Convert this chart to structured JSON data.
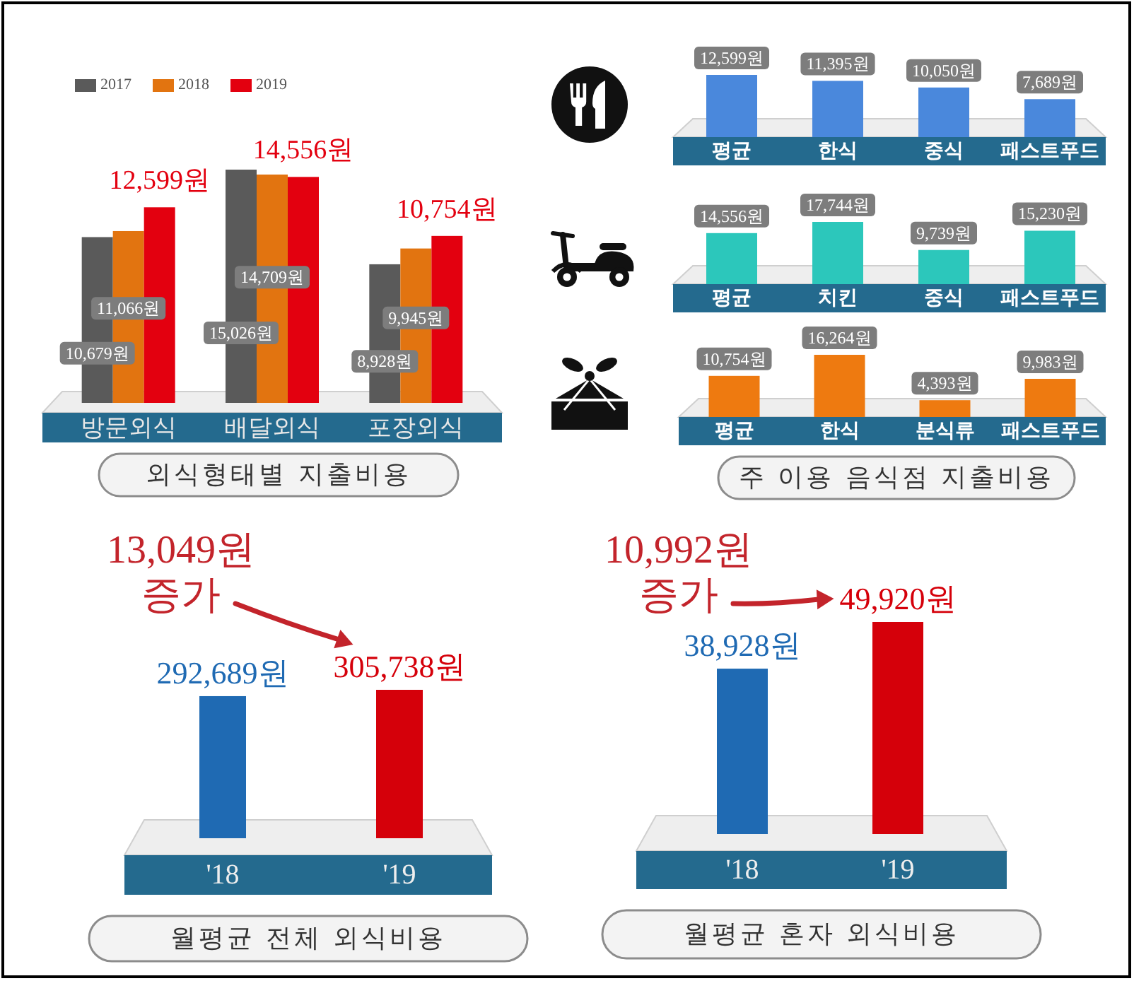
{
  "chart_data": [
    {
      "type": "bar",
      "title": "외식형태별 지출비용",
      "categories": [
        "방문외식",
        "배달외식",
        "포장외식"
      ],
      "legend": "top left",
      "series": [
        {
          "name": "2017",
          "color": "#5a5a5a",
          "values": [
            10679,
            15026,
            8928
          ],
          "value_labels": [
            "10,679원",
            "15,026원",
            "8,928원"
          ]
        },
        {
          "name": "2018",
          "color": "#e27410",
          "values": [
            11066,
            14709,
            9945
          ],
          "value_labels": [
            "11,066원",
            "14,709원",
            "9,945원"
          ]
        },
        {
          "name": "2019",
          "color": "#e3000f",
          "values": [
            12599,
            14556,
            10754
          ],
          "value_labels": [
            "12,599원",
            "14,556원",
            "10,754원"
          ]
        }
      ]
    },
    {
      "type": "bar",
      "categories": [
        "평균",
        "한식",
        "중식",
        "패스트푸드"
      ],
      "values": [
        12599,
        11395,
        10050,
        7689
      ],
      "color": "#4a88dc",
      "value_labels": [
        "12,599원",
        "11,395원",
        "10,050원",
        "7,689원"
      ]
    },
    {
      "type": "bar",
      "categories": [
        "평균",
        "치킨",
        "중식",
        "패스트푸드"
      ],
      "values": [
        14556,
        17744,
        9739,
        15230
      ],
      "color": "#2cc7bb",
      "value_labels": [
        "14,556원",
        "17,744원",
        "9,739원",
        "15,230원"
      ]
    },
    {
      "type": "bar",
      "title": "주 이용 음식점 지출비용",
      "categories": [
        "평균",
        "한식",
        "분식류",
        "패스트푸드"
      ],
      "values": [
        10754,
        16264,
        4393,
        9983
      ],
      "color": "#ee7a10",
      "value_labels": [
        "10,754원",
        "16,264원",
        "4,393원",
        "9,983원"
      ]
    },
    {
      "type": "bar",
      "title": "월평균 전체 외식비용",
      "categories": [
        "'18",
        "'19"
      ],
      "values": [
        292689,
        305738
      ],
      "colors": [
        "#1f6ab3",
        "#d5000a"
      ],
      "value_labels": [
        "292,689원",
        "305,738원"
      ],
      "annotations": [
        "13,049원 증가"
      ]
    },
    {
      "type": "bar",
      "title": "월평균 혼자 외식비용",
      "categories": [
        "'18",
        "'19"
      ],
      "values": [
        38928,
        49920
      ],
      "colors": [
        "#1f6ab3",
        "#d5000a"
      ],
      "value_labels": [
        "38,928원",
        "49,920원"
      ],
      "annotations": [
        "10,992원 증가"
      ]
    }
  ]
}
